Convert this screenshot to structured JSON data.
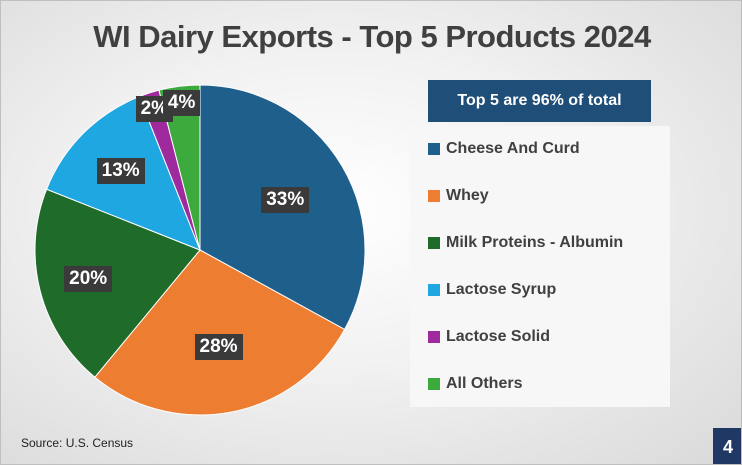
{
  "chart_data": {
    "type": "pie",
    "title": "WI Dairy Exports - Top 5 Products 2024",
    "categories": [
      "Cheese And Curd",
      "Whey",
      "Milk Proteins - Albumin",
      "Lactose Syrup",
      "Lactose Solid",
      "All Others"
    ],
    "values": [
      33,
      28,
      20,
      13,
      2,
      4
    ],
    "value_labels": [
      "33%",
      "28%",
      "20%",
      "13%",
      "2%",
      "4%"
    ],
    "colors": [
      "#1f5f8b",
      "#ed7d31",
      "#1f6b2a",
      "#1ea7e1",
      "#9e2a9e",
      "#3daa3d"
    ],
    "legend_position": "right",
    "callout": "Top 5 are 96% of total"
  },
  "footer": {
    "source": "Source: U.S. Census",
    "page_number": "4"
  }
}
